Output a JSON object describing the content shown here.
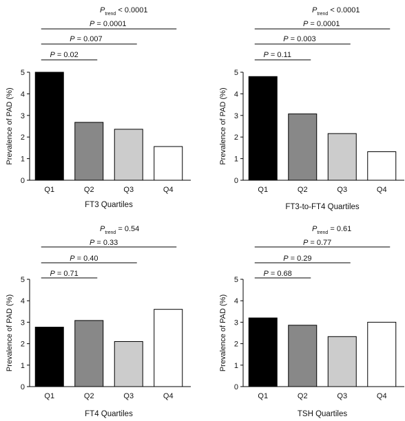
{
  "chart_data": [
    {
      "type": "bar",
      "xlabel": "FT3 Quartiles",
      "ylabel": "Prevalence of PAD (%)",
      "categories": [
        "Q1",
        "Q2",
        "Q3",
        "Q4"
      ],
      "values": [
        5.0,
        2.68,
        2.36,
        1.56
      ],
      "bar_colors": [
        "#000000",
        "#888888",
        "#cccccc",
        "#ffffff"
      ],
      "ylim": [
        0,
        5
      ],
      "yticks": [
        "0",
        "1",
        "2",
        "3",
        "4",
        "5"
      ],
      "p_trend": "< 0.0001",
      "comparisons": [
        {
          "from": "Q1",
          "to": "Q4",
          "p": "= 0.0001"
        },
        {
          "from": "Q1",
          "to": "Q3",
          "p": "= 0.007"
        },
        {
          "from": "Q1",
          "to": "Q2",
          "p": "= 0.02"
        }
      ]
    },
    {
      "type": "bar",
      "xlabel": "FT3-to-FT4 Quartiles",
      "ylabel": "Prevalence of PAD (%)",
      "categories": [
        "Q1",
        "Q2",
        "Q3",
        "Q4"
      ],
      "values": [
        4.8,
        3.07,
        2.16,
        1.32
      ],
      "bar_colors": [
        "#000000",
        "#888888",
        "#cccccc",
        "#ffffff"
      ],
      "ylim": [
        0,
        5
      ],
      "yticks": [
        "0",
        "1",
        "2",
        "3",
        "4",
        "5"
      ],
      "p_trend": "< 0.0001",
      "comparisons": [
        {
          "from": "Q1",
          "to": "Q4",
          "p": "= 0.0001"
        },
        {
          "from": "Q1",
          "to": "Q3",
          "p": "= 0.003"
        },
        {
          "from": "Q1",
          "to": "Q2",
          "p": "= 0.11"
        }
      ]
    },
    {
      "type": "bar",
      "xlabel": "FT4 Quartiles",
      "ylabel": "Prevalence of PAD (%)",
      "categories": [
        "Q1",
        "Q2",
        "Q3",
        "Q4"
      ],
      "values": [
        2.77,
        3.08,
        2.1,
        3.6
      ],
      "bar_colors": [
        "#000000",
        "#888888",
        "#cccccc",
        "#ffffff"
      ],
      "ylim": [
        0,
        5
      ],
      "yticks": [
        "0",
        "1",
        "2",
        "3",
        "4",
        "5"
      ],
      "p_trend": "= 0.54",
      "comparisons": [
        {
          "from": "Q1",
          "to": "Q4",
          "p": "= 0.33"
        },
        {
          "from": "Q1",
          "to": "Q3",
          "p": "= 0.40"
        },
        {
          "from": "Q1",
          "to": "Q2",
          "p": "= 0.71"
        }
      ]
    },
    {
      "type": "bar",
      "xlabel": "TSH Quartiles",
      "ylabel": "Prevalence of PAD (%)",
      "categories": [
        "Q1",
        "Q2",
        "Q3",
        "Q4"
      ],
      "values": [
        3.2,
        2.86,
        2.33,
        3.0
      ],
      "bar_colors": [
        "#000000",
        "#888888",
        "#cccccc",
        "#ffffff"
      ],
      "ylim": [
        0,
        5
      ],
      "yticks": [
        "0",
        "1",
        "2",
        "3",
        "4",
        "5"
      ],
      "p_trend": "= 0.61",
      "comparisons": [
        {
          "from": "Q1",
          "to": "Q4",
          "p": "= 0.77"
        },
        {
          "from": "Q1",
          "to": "Q3",
          "p": "= 0.29"
        },
        {
          "from": "Q1",
          "to": "Q2",
          "p": "= 0.68"
        }
      ]
    }
  ],
  "labels": {
    "p_letter": "P",
    "trend_subscript": "trend"
  }
}
